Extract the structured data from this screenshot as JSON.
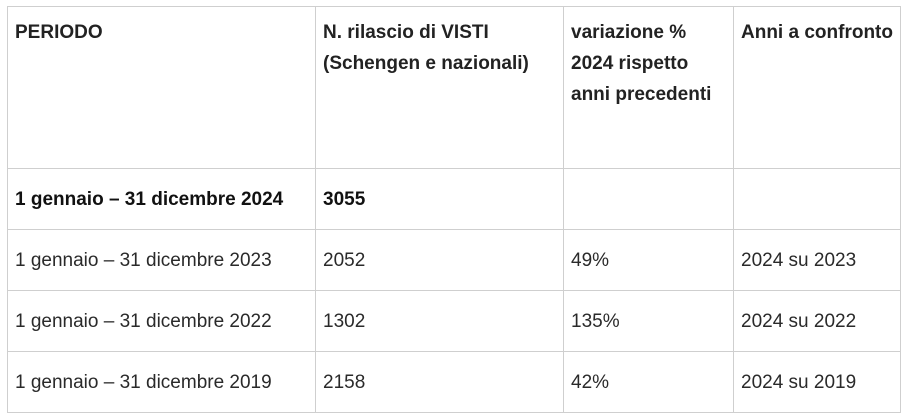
{
  "table": {
    "headers": [
      "PERIODO",
      "N. rilascio di VISTI (Schengen e nazionali)",
      "variazione % 2024 rispetto anni precedenti",
      "Anni a confronto"
    ],
    "rows": [
      {
        "period": "1 gennaio – 31 dicembre 2024",
        "visas": "3055",
        "change": "",
        "compare": "",
        "bold": true
      },
      {
        "period": "1 gennaio – 31 dicembre 2023",
        "visas": "2052",
        "change": "49%",
        "compare": "2024 su 2023"
      },
      {
        "period": "1 gennaio – 31 dicembre 2022",
        "visas": "1302",
        "change": "135%",
        "compare": "2024 su 2022"
      },
      {
        "period": "1 gennaio – 31 dicembre 2019",
        "visas": "2158",
        "change": "42%",
        "compare": "2024 su 2019"
      }
    ]
  }
}
